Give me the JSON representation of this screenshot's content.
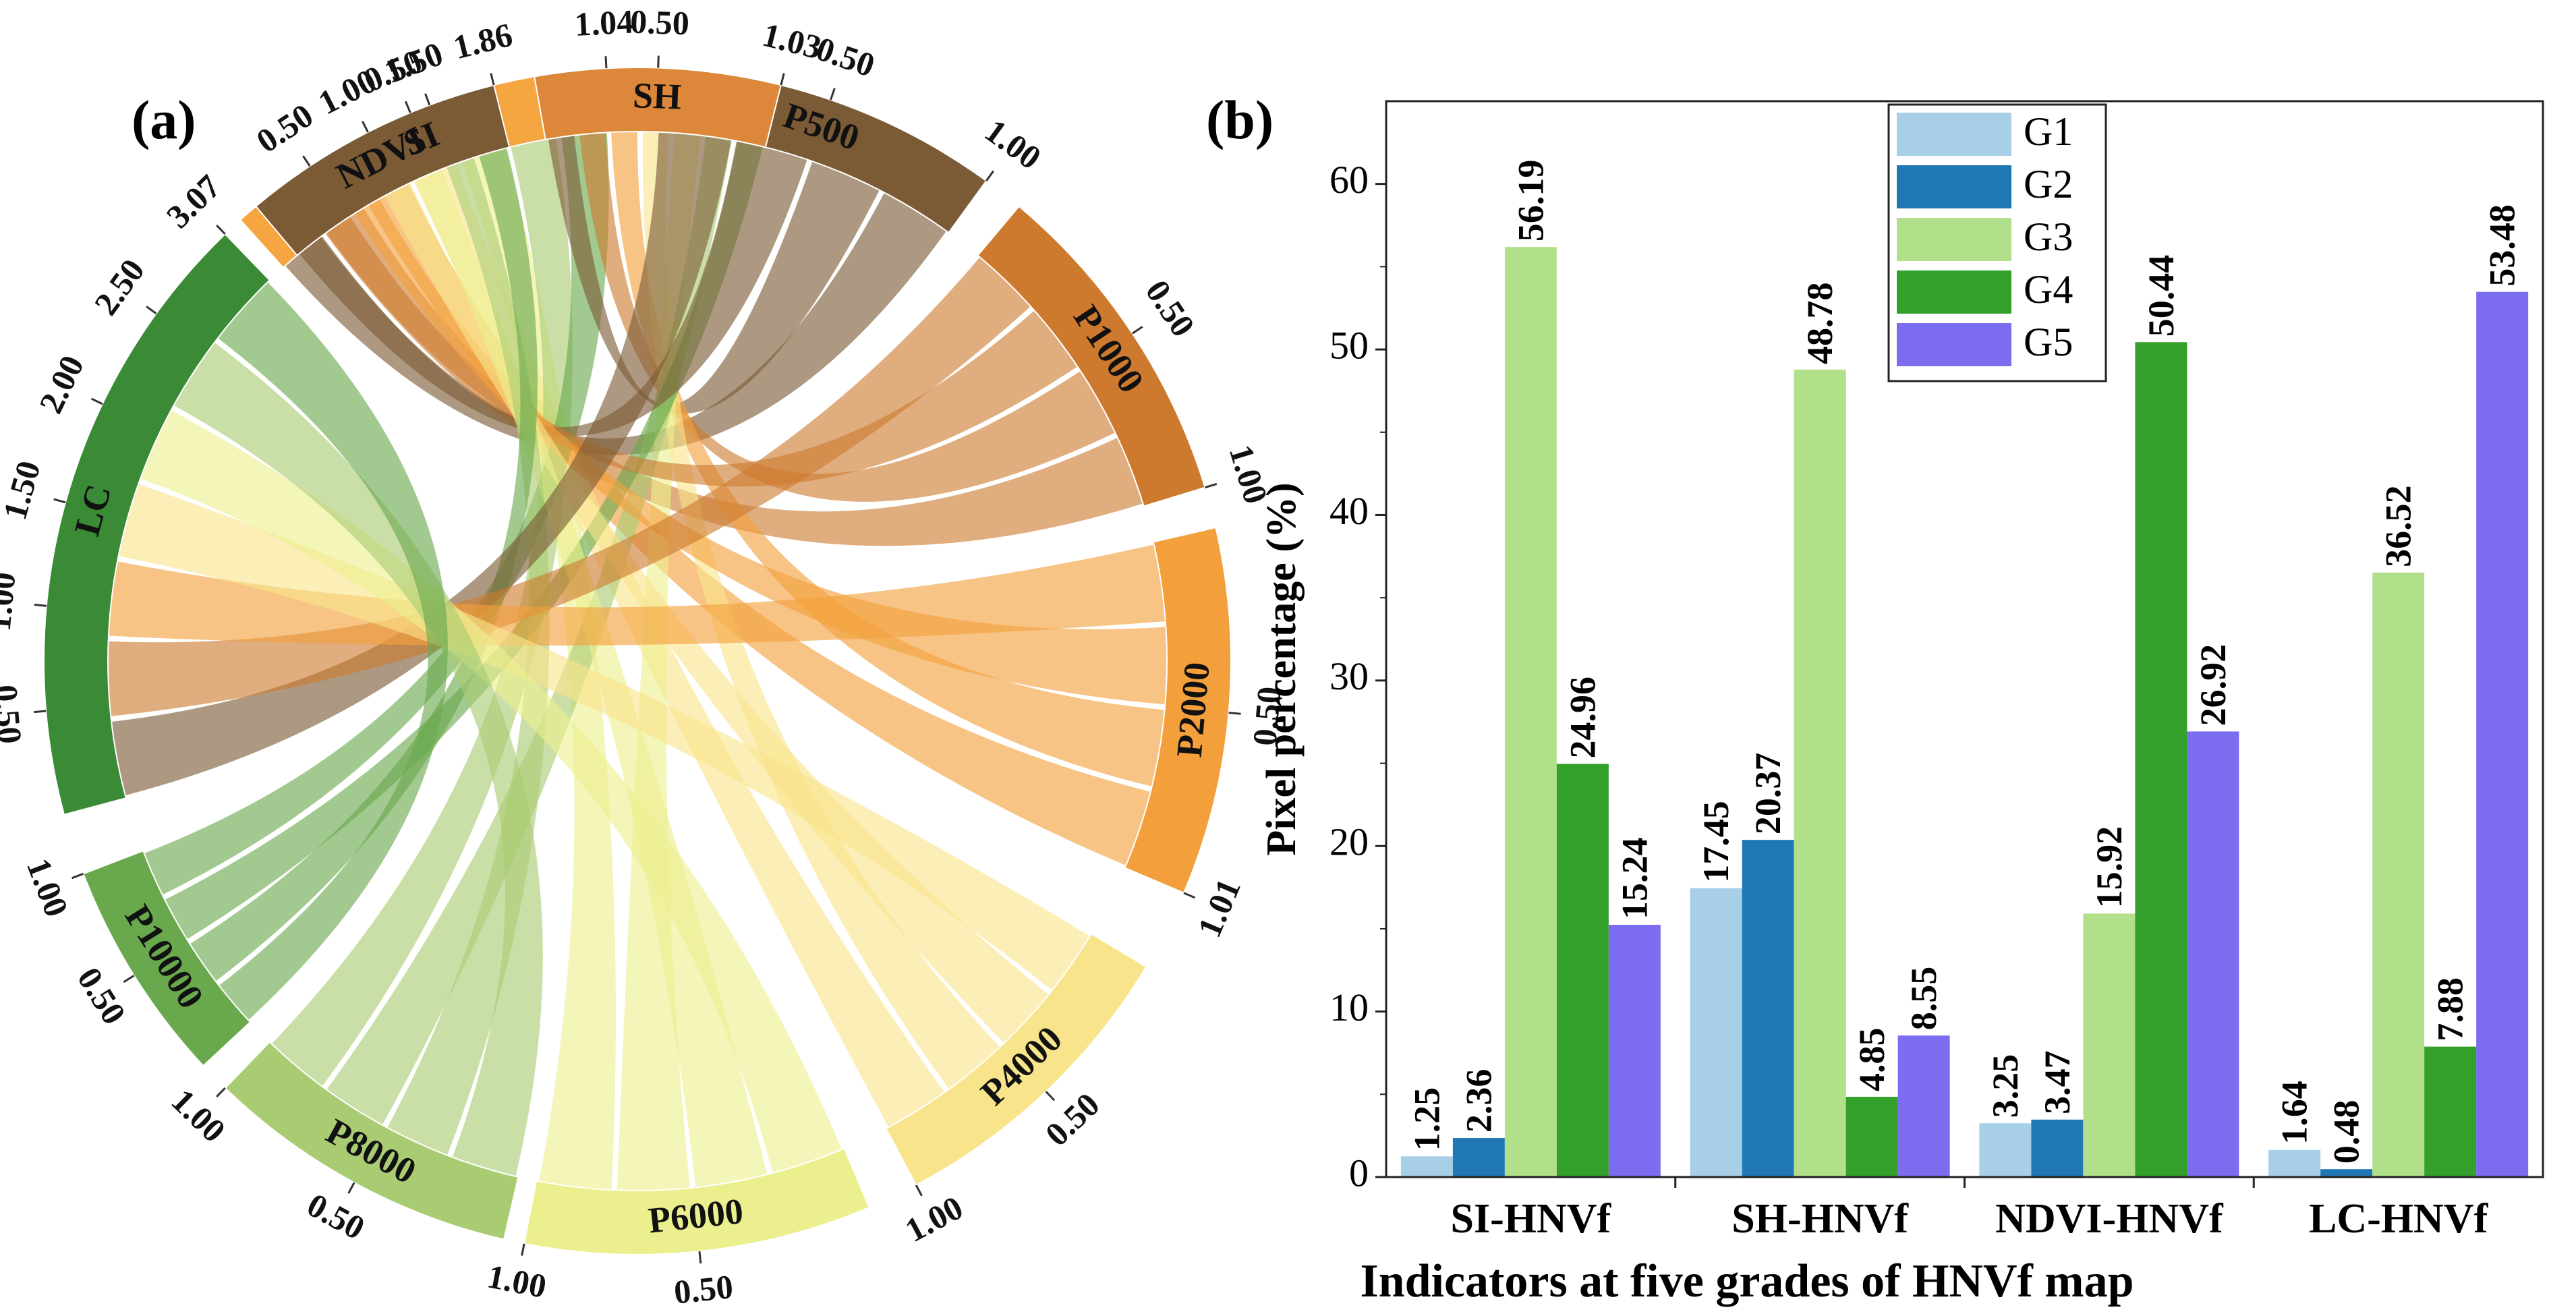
{
  "panel_labels": {
    "a": "(a)",
    "b": "(b)"
  },
  "chart_data": [
    {
      "type": "chord",
      "panel": "(a)",
      "segments": [
        {
          "name": "SI",
          "max_label": "1.04",
          "ticks": [
            "0.50",
            "1.04"
          ],
          "color": "#f5a640"
        },
        {
          "name": "P500",
          "max_label": "1.00",
          "ticks": [
            "0.50",
            "1.00"
          ],
          "color": "#7b5a36"
        },
        {
          "name": "P1000",
          "max_label": "1.00",
          "ticks": [
            "0.50",
            "1.00"
          ],
          "color": "#cd7a2e"
        },
        {
          "name": "P2000",
          "max_label": "1.01",
          "ticks": [
            "0.50",
            "1.01"
          ],
          "color": "#f3a03c"
        },
        {
          "name": "P4000",
          "max_label": "1.00",
          "ticks": [
            "0.50",
            "1.00"
          ],
          "color": "#f8e48a"
        },
        {
          "name": "P6000",
          "max_label": "1.00",
          "ticks": [
            "0.50",
            "1.00"
          ],
          "color": "#ecef8e"
        },
        {
          "name": "P8000",
          "max_label": "1.00",
          "ticks": [
            "0.50",
            "1.00"
          ],
          "color": "#a9cc73"
        },
        {
          "name": "P10000",
          "max_label": "1.00",
          "ticks": [
            "0.50",
            "1.00"
          ],
          "color": "#69a84c"
        },
        {
          "name": "LC",
          "max_label": "3.07",
          "ticks": [
            "0.50",
            "1.00",
            "1.50",
            "2.00",
            "2.50",
            "3.07"
          ],
          "color": "#3a8a36"
        },
        {
          "name": "NDVI",
          "max_label": "1.86",
          "ticks": [
            "0.50",
            "1.00",
            "1.50",
            "1.86"
          ],
          "color": "#7b5a36"
        },
        {
          "name": "SH",
          "max_label": "1.03",
          "ticks": [
            "0.50",
            "1.03"
          ],
          "color": "#dd873a"
        }
      ],
      "links": [
        {
          "from": "SI",
          "to": "P500"
        },
        {
          "from": "SI",
          "to": "P1000"
        },
        {
          "from": "SI",
          "to": "P2000"
        },
        {
          "from": "SI",
          "to": "P4000"
        },
        {
          "from": "SI",
          "to": "P6000"
        },
        {
          "from": "SI",
          "to": "P8000"
        },
        {
          "from": "SI",
          "to": "P10000"
        },
        {
          "from": "SH",
          "to": "P500"
        },
        {
          "from": "SH",
          "to": "P1000"
        },
        {
          "from": "SH",
          "to": "P2000"
        },
        {
          "from": "SH",
          "to": "P4000"
        },
        {
          "from": "SH",
          "to": "P6000"
        },
        {
          "from": "SH",
          "to": "P8000"
        },
        {
          "from": "SH",
          "to": "P10000"
        },
        {
          "from": "NDVI",
          "to": "P500"
        },
        {
          "from": "NDVI",
          "to": "P1000"
        },
        {
          "from": "NDVI",
          "to": "P2000"
        },
        {
          "from": "NDVI",
          "to": "P4000"
        },
        {
          "from": "NDVI",
          "to": "P6000"
        },
        {
          "from": "NDVI",
          "to": "P8000"
        },
        {
          "from": "NDVI",
          "to": "P10000"
        },
        {
          "from": "LC",
          "to": "P500"
        },
        {
          "from": "LC",
          "to": "P1000"
        },
        {
          "from": "LC",
          "to": "P2000"
        },
        {
          "from": "LC",
          "to": "P4000"
        },
        {
          "from": "LC",
          "to": "P6000"
        },
        {
          "from": "LC",
          "to": "P8000"
        },
        {
          "from": "LC",
          "to": "P10000"
        }
      ]
    },
    {
      "type": "bar",
      "panel": "(b)",
      "categories": [
        "SI-HNVf",
        "SH-HNVf",
        "NDVI-HNVf",
        "LC-HNVf"
      ],
      "series": [
        {
          "name": "G1",
          "color": "#a8cfe8",
          "values": [
            1.25,
            17.45,
            3.25,
            1.64
          ],
          "labels": [
            "1.25",
            "17.45",
            "3.25",
            "1.64"
          ]
        },
        {
          "name": "G2",
          "color": "#1f78b4",
          "values": [
            2.36,
            20.37,
            3.47,
            0.48
          ],
          "labels": [
            "2.36",
            "20.37",
            "3.47",
            "0.48"
          ]
        },
        {
          "name": "G3",
          "color": "#b2df8a",
          "values": [
            56.19,
            48.78,
            15.92,
            36.52
          ],
          "labels": [
            "56.19",
            "48.78",
            "15.92",
            "36.52"
          ]
        },
        {
          "name": "G4",
          "color": "#33a02c",
          "values": [
            24.96,
            4.85,
            50.44,
            7.88
          ],
          "labels": [
            "24.96",
            "4.85",
            "50.44",
            "7.88"
          ]
        },
        {
          "name": "G5",
          "color": "#7b6cf0",
          "values": [
            15.24,
            8.55,
            26.92,
            53.48
          ],
          "labels": [
            "15.24",
            "8.55",
            "26.92",
            "53.48"
          ]
        }
      ],
      "xlabel": "Indicators at five grades of HNVf map",
      "ylabel": "Pixel percentage (%)",
      "ylim": [
        0,
        65
      ],
      "yticks": [
        0,
        10,
        20,
        30,
        40,
        50,
        60
      ],
      "ytick_labels": [
        "0",
        "10",
        "20",
        "30",
        "40",
        "50",
        "60"
      ],
      "legend": "top-center",
      "grid": false
    }
  ]
}
